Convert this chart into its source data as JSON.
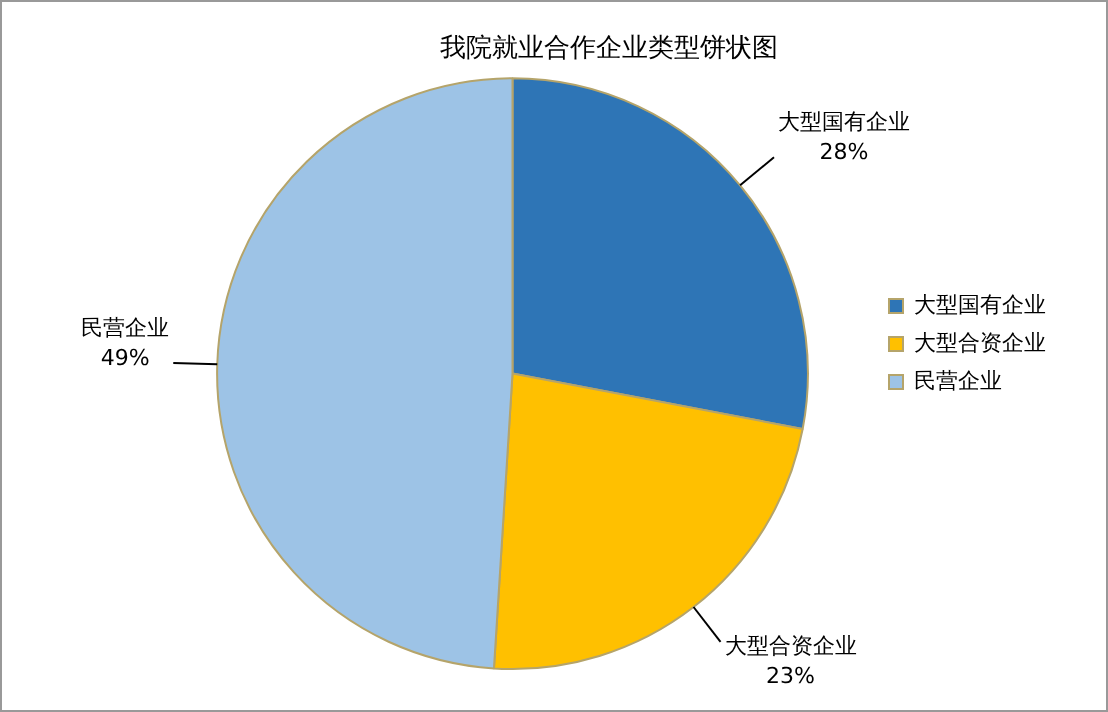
{
  "chart_data": {
    "type": "pie",
    "title": "我院就业合作企业类型饼状图",
    "categories": [
      "大型国有企业",
      "大型合资企业",
      "民营企业"
    ],
    "values": [
      28,
      23,
      49
    ],
    "colors": [
      "#2e75b6",
      "#ffc000",
      "#9dc3e6"
    ],
    "value_labels": [
      "28%",
      "23%",
      "49%"
    ],
    "legend": "right"
  }
}
